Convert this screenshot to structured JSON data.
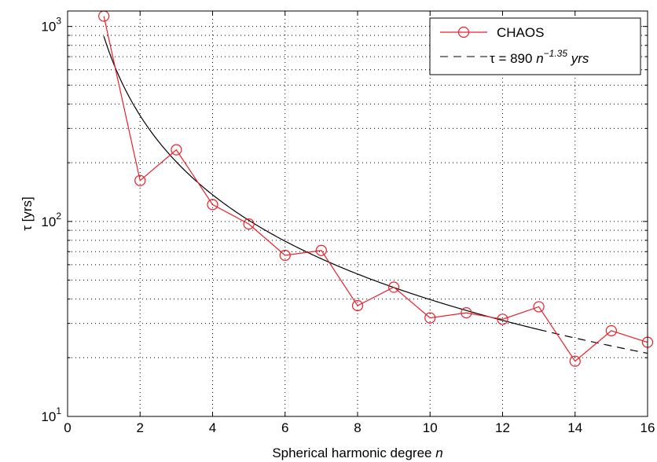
{
  "chart_data": {
    "type": "line",
    "xlabel": "Spherical harmonic degree ",
    "xlabel_italic": "n",
    "ylabel": "τ [yrs]",
    "xlim": [
      0,
      16
    ],
    "ylim": [
      10,
      1200
    ],
    "yscale": "log",
    "grid": true,
    "legend_position": "top-right",
    "x_ticks": [
      0,
      2,
      4,
      6,
      8,
      10,
      12,
      14,
      16
    ],
    "y_ticks": [
      {
        "value": 10,
        "base": "10",
        "exp": "1"
      },
      {
        "value": 100,
        "base": "10",
        "exp": "2"
      },
      {
        "value": 1000,
        "base": "10",
        "exp": "3"
      }
    ],
    "series": [
      {
        "name": "CHAOS",
        "style": "solid-circle",
        "color": "#e8202a",
        "x": [
          1,
          2,
          3,
          4,
          5,
          6,
          7,
          8,
          9,
          10,
          11,
          12,
          13,
          14,
          15,
          16
        ],
        "y": [
          1130,
          162,
          233,
          122,
          97,
          67,
          71,
          37,
          46,
          32,
          34,
          31.5,
          36.5,
          19.2,
          27.5,
          24
        ]
      },
      {
        "name_prefix": "τ = 890 ",
        "name_var": "n",
        "name_exp": "−1.35",
        "name_suffix": " yrs",
        "style": "fit",
        "color": "#000000",
        "coef": 890,
        "power": -1.35,
        "x_start": 1,
        "x_end": 16,
        "dash_from": 13
      }
    ]
  }
}
